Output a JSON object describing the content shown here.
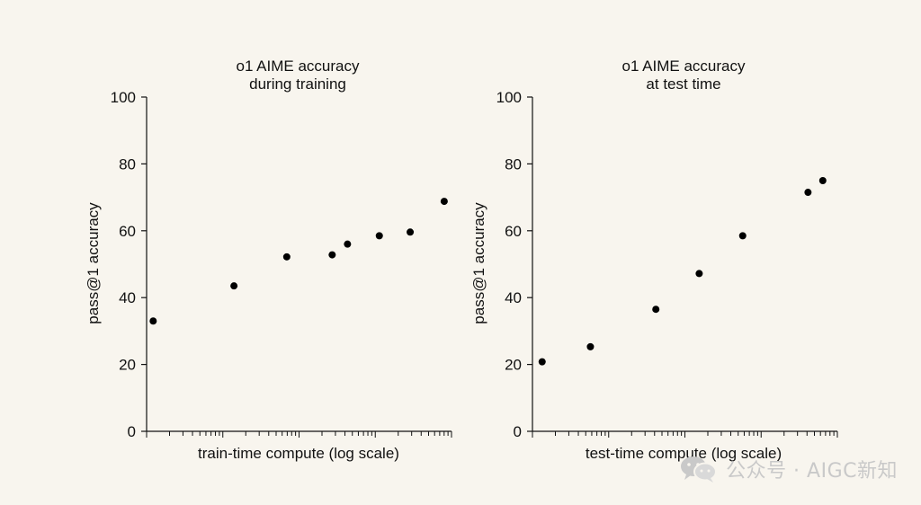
{
  "chart_data": [
    {
      "type": "scatter",
      "title": [
        "o1 AIME accuracy",
        "during training"
      ],
      "xlabel": "train-time compute (log scale)",
      "ylabel": "pass@1 accuracy",
      "xscale": "log",
      "xlim": [
        1,
        10000
      ],
      "ylim": [
        0,
        100
      ],
      "yticks": [
        0,
        20,
        40,
        60,
        80,
        100
      ],
      "points": [
        {
          "x": 1.22,
          "y": 33.0
        },
        {
          "x": 14.0,
          "y": 43.5
        },
        {
          "x": 69.0,
          "y": 52.2
        },
        {
          "x": 272.0,
          "y": 52.8
        },
        {
          "x": 432.0,
          "y": 56.0
        },
        {
          "x": 1130.0,
          "y": 58.5
        },
        {
          "x": 2870.0,
          "y": 59.6
        },
        {
          "x": 8020.0,
          "y": 68.8
        }
      ]
    },
    {
      "type": "scatter",
      "title": [
        "o1 AIME accuracy",
        "at test time"
      ],
      "xlabel": "test-time compute (log scale)",
      "ylabel": "pass@1 accuracy",
      "xscale": "log",
      "xlim": [
        1,
        10000
      ],
      "ylim": [
        0,
        100
      ],
      "yticks": [
        0,
        20,
        40,
        60,
        80,
        100
      ],
      "points": [
        {
          "x": 1.34,
          "y": 20.8
        },
        {
          "x": 5.76,
          "y": 25.3
        },
        {
          "x": 41.6,
          "y": 36.5
        },
        {
          "x": 154.0,
          "y": 47.2
        },
        {
          "x": 573.0,
          "y": 58.5
        },
        {
          "x": 4120.0,
          "y": 71.5
        },
        {
          "x": 6440.0,
          "y": 75.0
        }
      ]
    }
  ],
  "watermark": {
    "text": "公众号 · AIGC新知",
    "icon": "wechat-icon"
  }
}
